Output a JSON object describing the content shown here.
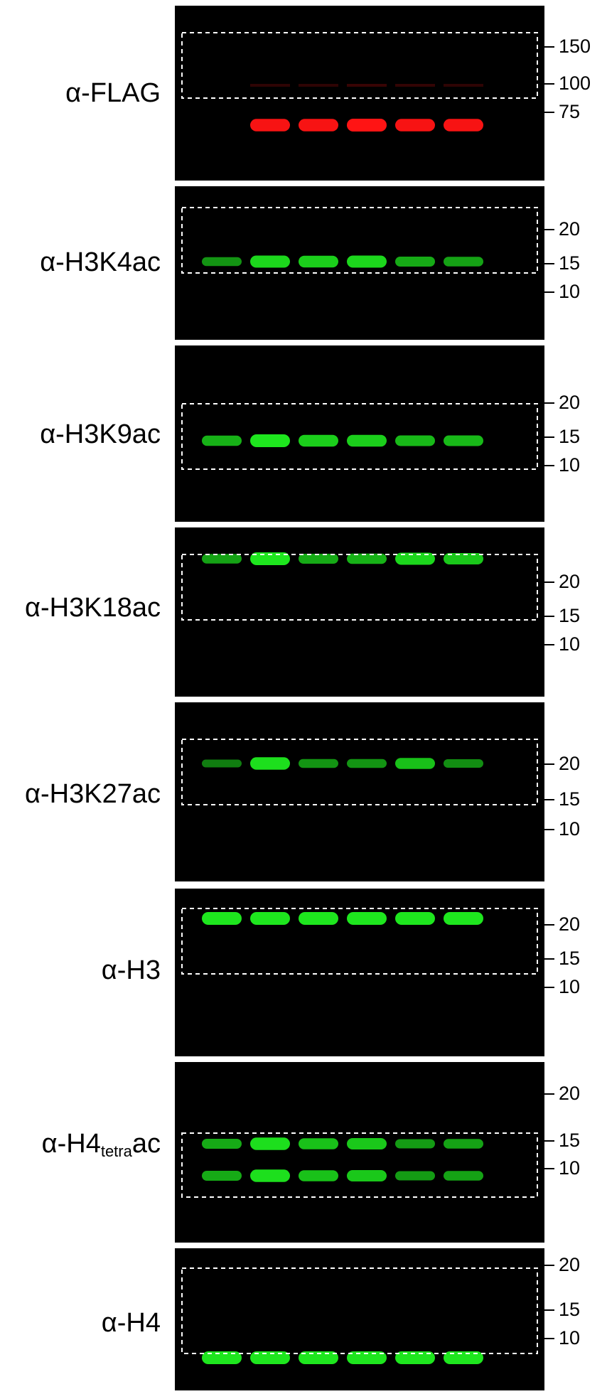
{
  "figure": {
    "lane_count": 6,
    "box_outline_color": "#ffffff",
    "panels": [
      {
        "label": "α-FLAG",
        "channel_color": "#ff1414",
        "markers": [
          "150",
          "100",
          "75"
        ],
        "lane_intensity": [
          0,
          0.95,
          0.95,
          1.0,
          0.95,
          0.95
        ],
        "faint_band_intensity": [
          0,
          0.18,
          0.18,
          0.22,
          0.2,
          0.18
        ]
      },
      {
        "label": "α-H3K4ac",
        "channel_color": "#1ee61e",
        "markers": [
          "20",
          "15",
          "10"
        ],
        "lane_intensity": [
          0.45,
          0.9,
          0.85,
          0.9,
          0.6,
          0.55
        ]
      },
      {
        "label": "α-H3K9ac",
        "channel_color": "#1ee61e",
        "markers": [
          "20",
          "15",
          "10"
        ],
        "lane_intensity": [
          0.65,
          1.0,
          0.85,
          0.85,
          0.7,
          0.7
        ]
      },
      {
        "label": "α-H3K18ac",
        "channel_color": "#1ee61e",
        "markers": [
          "20",
          "15",
          "10"
        ],
        "lane_intensity": [
          0.55,
          1.0,
          0.6,
          0.65,
          0.9,
          0.8
        ]
      },
      {
        "label": "α-H3K27ac",
        "channel_color": "#1ee61e",
        "markers": [
          "20",
          "15",
          "10"
        ],
        "lane_intensity": [
          0.3,
          0.95,
          0.45,
          0.45,
          0.75,
          0.4
        ]
      },
      {
        "label": "α-H3",
        "channel_color": "#1ee61e",
        "markers": [
          "20",
          "15",
          "10"
        ],
        "lane_intensity": [
          1.0,
          1.0,
          1.0,
          1.0,
          1.0,
          1.0
        ]
      },
      {
        "label_main": "α-H4",
        "label_sub": "tetra",
        "label_tail": "ac",
        "channel_color": "#1ee61e",
        "markers": [
          "20",
          "15",
          "10"
        ],
        "lane_intensity": [
          0.6,
          0.95,
          0.75,
          0.8,
          0.5,
          0.55
        ]
      },
      {
        "label": "α-H4",
        "channel_color": "#1ee61e",
        "markers": [
          "20",
          "15",
          "10"
        ],
        "lane_intensity": [
          1.0,
          1.0,
          1.0,
          1.0,
          1.0,
          1.0
        ]
      }
    ]
  }
}
